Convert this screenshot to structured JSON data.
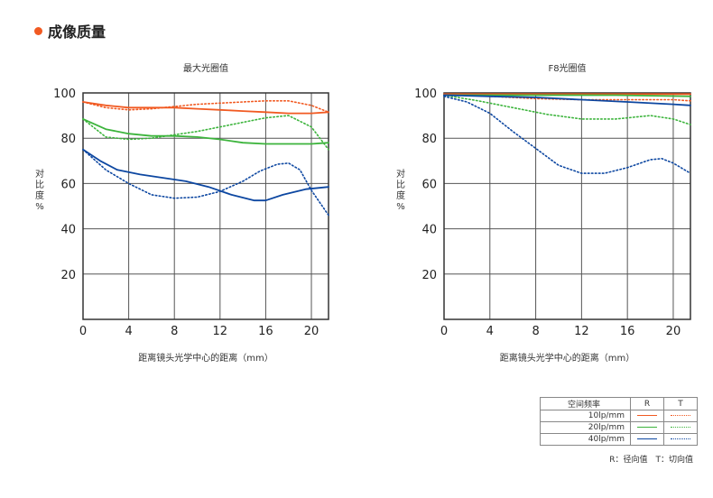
{
  "heading": "成像质量",
  "colors": {
    "orange": "#f15a22",
    "green": "#3cb43c",
    "blue": "#0d47a1"
  },
  "legend": {
    "header": [
      "空间频率",
      "R",
      "T"
    ],
    "rows": [
      {
        "label": "10lp/mm",
        "color": "#f15a22"
      },
      {
        "label": "20lp/mm",
        "color": "#3cb43c"
      },
      {
        "label": "40lp/mm",
        "color": "#0d47a1"
      }
    ],
    "note": "R：径向值　T：切向值"
  },
  "chart_data": [
    {
      "type": "line",
      "title": "最大光圈值",
      "xlabel": "距离镜头光学中心的距离（mm）",
      "ylabel": "对比度%",
      "xlim": [
        0,
        21.5
      ],
      "ylim": [
        0,
        100
      ],
      "xticks": [
        0,
        4,
        8,
        12,
        16,
        20
      ],
      "yticks": [
        20,
        40,
        60,
        80,
        100
      ],
      "series": [
        {
          "name": "10lp/mm R",
          "color": "#f15a22",
          "dash": false,
          "points": [
            [
              0,
              96
            ],
            [
              2,
              94.5
            ],
            [
              4,
              93.5
            ],
            [
              6,
              93.5
            ],
            [
              8,
              93.5
            ],
            [
              10,
              93
            ],
            [
              12,
              92.5
            ],
            [
              14,
              92
            ],
            [
              16,
              91.5
            ],
            [
              18,
              91
            ],
            [
              20,
              91
            ],
            [
              21.5,
              91.5
            ]
          ]
        },
        {
          "name": "10lp/mm T",
          "color": "#f15a22",
          "dash": true,
          "points": [
            [
              0,
              96
            ],
            [
              2,
              93.5
            ],
            [
              4,
              92.5
            ],
            [
              6,
              93
            ],
            [
              8,
              94
            ],
            [
              10,
              95
            ],
            [
              12,
              95.5
            ],
            [
              14,
              96
            ],
            [
              16,
              96.5
            ],
            [
              18,
              96.5
            ],
            [
              20,
              94.5
            ],
            [
              21.5,
              91.5
            ]
          ]
        },
        {
          "name": "20lp/mm R",
          "color": "#3cb43c",
          "dash": false,
          "points": [
            [
              0,
              88.5
            ],
            [
              2,
              84
            ],
            [
              4,
              82
            ],
            [
              6,
              81
            ],
            [
              8,
              81
            ],
            [
              10,
              80.5
            ],
            [
              12,
              79.5
            ],
            [
              14,
              78
            ],
            [
              16,
              77.5
            ],
            [
              18,
              77.5
            ],
            [
              20,
              77.5
            ],
            [
              21.5,
              78
            ]
          ]
        },
        {
          "name": "20lp/mm T",
          "color": "#3cb43c",
          "dash": true,
          "points": [
            [
              0,
              88.5
            ],
            [
              2,
              80.5
            ],
            [
              4,
              79.5
            ],
            [
              6,
              80
            ],
            [
              8,
              81.5
            ],
            [
              10,
              83
            ],
            [
              12,
              85
            ],
            [
              14,
              87
            ],
            [
              16,
              89
            ],
            [
              18,
              90
            ],
            [
              20,
              85
            ],
            [
              21.5,
              75
            ]
          ]
        },
        {
          "name": "40lp/mm R",
          "color": "#0d47a1",
          "dash": false,
          "points": [
            [
              0,
              75
            ],
            [
              1.5,
              70
            ],
            [
              3,
              66
            ],
            [
              5,
              64
            ],
            [
              7,
              62.5
            ],
            [
              9,
              61
            ],
            [
              11,
              58.5
            ],
            [
              13,
              55
            ],
            [
              15,
              52.5
            ],
            [
              16,
              52.5
            ],
            [
              17.5,
              55
            ],
            [
              19.5,
              57.5
            ],
            [
              21.5,
              58.5
            ]
          ]
        },
        {
          "name": "40lp/mm T",
          "color": "#0d47a1",
          "dash": true,
          "points": [
            [
              0,
              75
            ],
            [
              2,
              66
            ],
            [
              4,
              60
            ],
            [
              6,
              55
            ],
            [
              8,
              53.5
            ],
            [
              10,
              54
            ],
            [
              12,
              56.5
            ],
            [
              14,
              61
            ],
            [
              15.5,
              65.5
            ],
            [
              17,
              68.5
            ],
            [
              18,
              69
            ],
            [
              19,
              66
            ],
            [
              20,
              57
            ],
            [
              21.5,
              46
            ]
          ]
        }
      ]
    },
    {
      "type": "line",
      "title": "F8光圈值",
      "xlabel": "距离镜头光学中心的距离（mm）",
      "ylabel": "对比度%",
      "xlim": [
        0,
        21.5
      ],
      "ylim": [
        0,
        100
      ],
      "xticks": [
        0,
        4,
        8,
        12,
        16,
        20
      ],
      "yticks": [
        20,
        40,
        60,
        80,
        100
      ],
      "series": [
        {
          "name": "10lp/mm R",
          "color": "#f15a22",
          "dash": false,
          "points": [
            [
              0,
              99.5
            ],
            [
              5,
              99.5
            ],
            [
              10,
              99.5
            ],
            [
              15,
              99.5
            ],
            [
              21.5,
              99.5
            ]
          ]
        },
        {
          "name": "10lp/mm T",
          "color": "#f15a22",
          "dash": true,
          "points": [
            [
              0,
              99.5
            ],
            [
              4,
              98.5
            ],
            [
              8,
              97.5
            ],
            [
              12,
              97
            ],
            [
              16,
              97
            ],
            [
              20,
              97
            ],
            [
              21.5,
              96.5
            ]
          ]
        },
        {
          "name": "20lp/mm R",
          "color": "#3cb43c",
          "dash": false,
          "points": [
            [
              0,
              99
            ],
            [
              5,
              99
            ],
            [
              10,
              99
            ],
            [
              15,
              99
            ],
            [
              21.5,
              98.5
            ]
          ]
        },
        {
          "name": "20lp/mm T",
          "color": "#3cb43c",
          "dash": true,
          "points": [
            [
              0,
              99
            ],
            [
              3,
              96.5
            ],
            [
              6,
              93.5
            ],
            [
              9,
              90.5
            ],
            [
              12,
              88.5
            ],
            [
              15,
              88.5
            ],
            [
              18,
              90
            ],
            [
              20,
              88.5
            ],
            [
              21.5,
              86
            ]
          ]
        },
        {
          "name": "40lp/mm R",
          "color": "#0d47a1",
          "dash": false,
          "points": [
            [
              0,
              99
            ],
            [
              4,
              98.5
            ],
            [
              8,
              98
            ],
            [
              12,
              97
            ],
            [
              16,
              96
            ],
            [
              20,
              95
            ],
            [
              21.5,
              94.5
            ]
          ]
        },
        {
          "name": "40lp/mm T",
          "color": "#0d47a1",
          "dash": true,
          "points": [
            [
              0,
              98.5
            ],
            [
              2,
              96
            ],
            [
              4,
              91
            ],
            [
              6,
              83
            ],
            [
              8,
              75.5
            ],
            [
              10,
              68
            ],
            [
              12,
              64.5
            ],
            [
              14,
              64.5
            ],
            [
              16,
              67
            ],
            [
              18,
              70.5
            ],
            [
              19,
              71
            ],
            [
              20,
              69
            ],
            [
              21.5,
              64.5
            ]
          ]
        }
      ]
    }
  ]
}
